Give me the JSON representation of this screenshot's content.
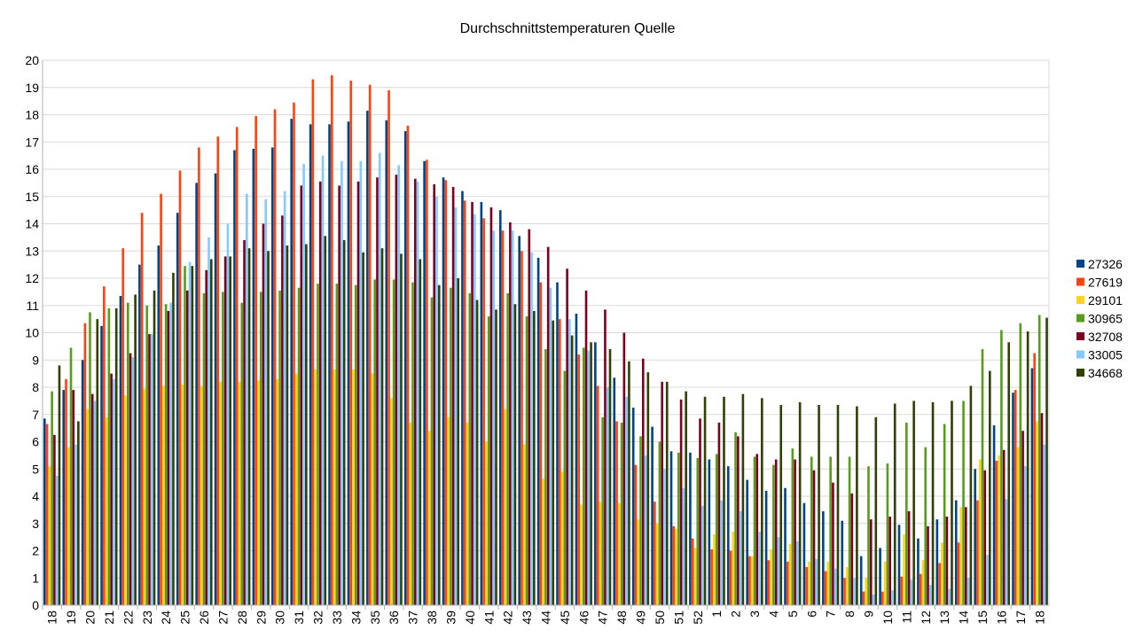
{
  "chart_data": {
    "type": "bar",
    "title": "Durchschnittstemperaturen Quelle",
    "xlabel": "",
    "ylabel": "",
    "ylim": [
      0,
      20
    ],
    "yticks": [
      0,
      1,
      2,
      3,
      4,
      5,
      6,
      7,
      8,
      9,
      10,
      11,
      12,
      13,
      14,
      15,
      16,
      17,
      18,
      19,
      20
    ],
    "grid": true,
    "legend_position": "right",
    "categories": [
      "18",
      "19",
      "20",
      "21",
      "22",
      "23",
      "24",
      "25",
      "26",
      "27",
      "28",
      "29",
      "30",
      "31",
      "32",
      "33",
      "34",
      "35",
      "36",
      "37",
      "38",
      "39",
      "40",
      "41",
      "42",
      "43",
      "44",
      "45",
      "46",
      "47",
      "48",
      "49",
      "50",
      "51",
      "52",
      "1",
      "2",
      "3",
      "4",
      "5",
      "6",
      "7",
      "8",
      "9",
      "10",
      "11",
      "12",
      "13",
      "14",
      "15",
      "16",
      "17",
      "18"
    ],
    "series": [
      {
        "name": "27326",
        "color": "#004586",
        "values": [
          6.85,
          7.9,
          9.0,
          10.25,
          11.35,
          12.5,
          13.2,
          14.4,
          15.5,
          15.85,
          16.7,
          16.75,
          16.8,
          17.85,
          17.65,
          17.65,
          17.75,
          18.15,
          17.8,
          17.4,
          16.3,
          15.7,
          15.2,
          14.8,
          14.5,
          13.55,
          12.75,
          11.85,
          10.7,
          9.65,
          8.35,
          7.25,
          6.55,
          5.65,
          5.6,
          5.35,
          5.1,
          4.6,
          4.2,
          4.3,
          3.75,
          3.45,
          3.1,
          1.8,
          2.1,
          2.95,
          2.45,
          3.15,
          3.85,
          5.0,
          6.6,
          7.8,
          8.7
        ]
      },
      {
        "name": "27619",
        "color": "#ff420e",
        "values": [
          6.65,
          8.3,
          10.35,
          11.7,
          13.1,
          14.4,
          15.1,
          15.95,
          16.8,
          17.2,
          17.55,
          17.95,
          18.2,
          18.45,
          19.3,
          19.45,
          19.25,
          19.1,
          18.9,
          17.6,
          16.35,
          15.6,
          14.85,
          14.2,
          13.75,
          13.0,
          11.85,
          10.5,
          9.2,
          8.05,
          6.75,
          5.15,
          3.8,
          2.9,
          2.45,
          2.05,
          2.0,
          1.8,
          1.65,
          1.6,
          1.4,
          1.25,
          1.0,
          0.5,
          0.5,
          1.05,
          1.15,
          1.55,
          2.3,
          3.85,
          5.3,
          7.9,
          9.25
        ]
      },
      {
        "name": "29101",
        "color": "#ffd320",
        "values": [
          5.1,
          5.8,
          7.2,
          6.9,
          7.7,
          7.95,
          8.05,
          8.1,
          8.05,
          8.2,
          8.2,
          8.25,
          8.3,
          8.5,
          8.65,
          8.65,
          8.65,
          8.5,
          7.6,
          6.7,
          6.4,
          6.9,
          6.7,
          6.0,
          7.2,
          5.9,
          4.65,
          4.9,
          3.7,
          3.8,
          3.75,
          3.15,
          3.0,
          2.8,
          2.1,
          2.6,
          2.7,
          1.8,
          2.05,
          2.25,
          1.6,
          1.6,
          1.4,
          1.0,
          1.6,
          2.6,
          1.65,
          2.3,
          3.6,
          5.35,
          5.5,
          5.8,
          6.75
        ]
      },
      {
        "name": "30965",
        "color": "#579d1c",
        "values": [
          7.85,
          9.45,
          10.75,
          10.9,
          11.1,
          11.0,
          11.05,
          12.45,
          11.45,
          11.5,
          11.1,
          11.5,
          11.55,
          11.65,
          11.8,
          11.8,
          11.75,
          11.95,
          11.95,
          11.85,
          11.3,
          11.65,
          11.45,
          10.6,
          11.45,
          10.6,
          9.4,
          8.6,
          9.45,
          6.9,
          6.7,
          6.2,
          6.0,
          5.6,
          5.4,
          5.55,
          6.35,
          5.45,
          5.15,
          5.75,
          5.45,
          5.45,
          5.45,
          5.1,
          5.2,
          6.7,
          5.8,
          6.65,
          7.5,
          9.4,
          10.1,
          10.35,
          10.65
        ]
      },
      {
        "name": "32708",
        "color": "#7e0021",
        "values": [
          6.25,
          7.9,
          7.75,
          8.5,
          9.25,
          9.95,
          10.8,
          11.55,
          12.3,
          12.8,
          13.4,
          14.0,
          14.3,
          15.4,
          15.55,
          15.4,
          15.55,
          15.7,
          15.8,
          15.65,
          15.45,
          15.35,
          14.8,
          14.6,
          14.05,
          13.8,
          13.15,
          12.35,
          11.55,
          10.85,
          10.0,
          9.05,
          8.2,
          7.55,
          6.85,
          6.7,
          6.2,
          5.55,
          5.35,
          5.35,
          4.95,
          4.5,
          4.1,
          3.15,
          3.25,
          3.45,
          2.9,
          3.25,
          3.6,
          4.95,
          5.7,
          6.4,
          7.05
        ]
      },
      {
        "name": "33005",
        "color": "#83caff",
        "values": [
          4.75,
          5.9,
          7.5,
          8.3,
          9.1,
          9.95,
          11.1,
          12.6,
          13.5,
          14.0,
          15.1,
          14.9,
          15.2,
          16.2,
          16.5,
          16.3,
          16.3,
          16.6,
          16.15,
          15.55,
          15.0,
          14.6,
          14.35,
          13.75,
          13.75,
          12.95,
          11.65,
          10.5,
          9.35,
          8.0,
          7.65,
          5.5,
          5.0,
          4.3,
          3.65,
          3.85,
          3.45,
          2.7,
          2.5,
          2.35,
          1.7,
          1.35,
          1.0,
          0.4,
          0.55,
          0.95,
          0.75,
          0.6,
          1.0,
          1.85,
          3.9,
          5.1,
          5.9
        ]
      },
      {
        "name": "34668",
        "color": "#314004",
        "values": [
          8.8,
          6.75,
          10.5,
          10.9,
          11.4,
          11.55,
          12.2,
          12.45,
          12.7,
          12.8,
          13.1,
          13.0,
          13.2,
          13.25,
          13.55,
          13.4,
          12.95,
          13.1,
          12.9,
          12.7,
          11.75,
          12.0,
          11.2,
          10.85,
          11.05,
          10.8,
          10.45,
          9.9,
          9.65,
          9.4,
          8.95,
          8.55,
          8.2,
          7.85,
          7.65,
          7.65,
          7.75,
          7.6,
          7.35,
          7.45,
          7.35,
          7.35,
          7.3,
          6.9,
          7.4,
          7.5,
          7.45,
          7.5,
          8.05,
          8.6,
          9.65,
          10.05,
          10.55
        ]
      }
    ]
  }
}
